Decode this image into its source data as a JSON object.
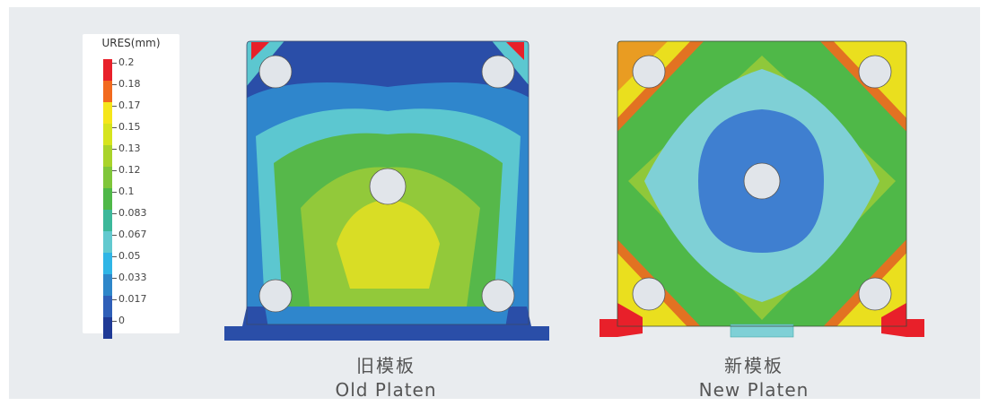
{
  "legend": {
    "title": "URES(mm)",
    "entries": [
      {
        "value": "0.2",
        "color": "#e8202a"
      },
      {
        "value": "0.18",
        "color": "#f26a1e"
      },
      {
        "value": "0.17",
        "color": "#f5e61a"
      },
      {
        "value": "0.15",
        "color": "#d6e41e"
      },
      {
        "value": "0.13",
        "color": "#a9d32a"
      },
      {
        "value": "0.12",
        "color": "#7fc63a"
      },
      {
        "value": "0.1",
        "color": "#4fb848"
      },
      {
        "value": "0.083",
        "color": "#3cb89a"
      },
      {
        "value": "0.067",
        "color": "#62c9cf"
      },
      {
        "value": "0.05",
        "color": "#2fb5e6"
      },
      {
        "value": "0.033",
        "color": "#2e86c9"
      },
      {
        "value": "0.017",
        "color": "#2f5fb8"
      },
      {
        "value": "0",
        "color": "#1f3a96"
      }
    ]
  },
  "old_platen": {
    "caption_cn": "旧模板",
    "caption_en": "Old Platen",
    "colors": {
      "edge": "#2a4ea8",
      "band1": "#2f86cc",
      "band2": "#5cc7d0",
      "band3": "#56b84a",
      "band4": "#92c93a",
      "core": "#d9dd25"
    }
  },
  "new_platen": {
    "caption_cn": "新模板",
    "caption_en": "New Platen",
    "colors": {
      "edge": "#e8202a",
      "band1": "#f26a1e",
      "band2": "#eadf1e",
      "band3": "#8fc83a",
      "band4": "#4fb848",
      "band5": "#7fd0d6",
      "core": "#3f7fd0"
    }
  }
}
